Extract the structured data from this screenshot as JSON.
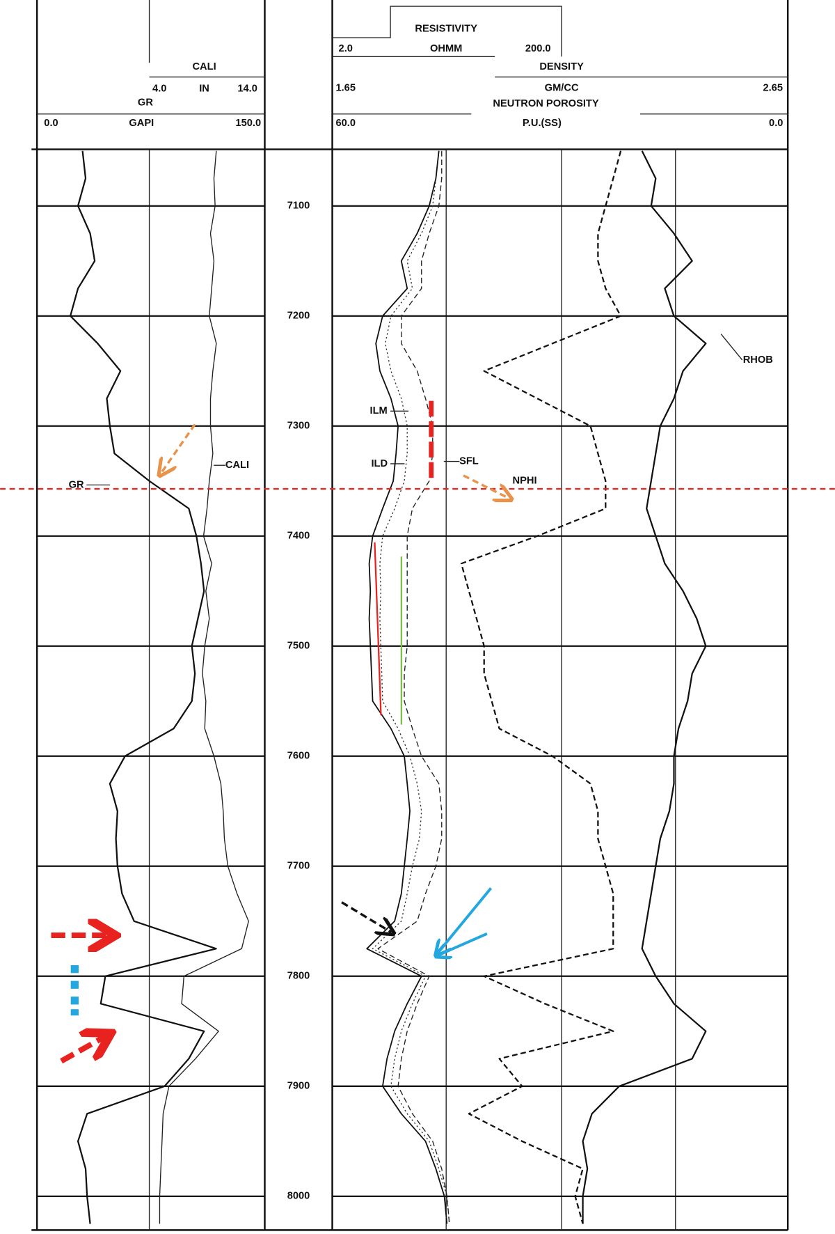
{
  "chart_data": {
    "type": "well-log",
    "depth": [
      7050,
      7075,
      7100,
      7125,
      7150,
      7175,
      7200,
      7225,
      7250,
      7275,
      7300,
      7325,
      7350,
      7375,
      7400,
      7425,
      7450,
      7475,
      7500,
      7525,
      7550,
      7575,
      7600,
      7625,
      7650,
      7675,
      7700,
      7725,
      7750,
      7775,
      7800,
      7825,
      7850,
      7875,
      7900,
      7925,
      7950,
      7975,
      8000,
      8025
    ],
    "ylim": [
      7050,
      8025
    ],
    "yticks": [
      7100,
      7200,
      7300,
      7400,
      7500,
      7600,
      7700,
      7800,
      7900,
      8000
    ],
    "grid": true,
    "scales": [
      {
        "title": "GR",
        "unit": "GAPI",
        "xlim": [
          0,
          150
        ],
        "xticks": [
          {
            "value": 0,
            "label": "0.0"
          },
          {
            "value": 150,
            "label": "150.0"
          }
        ],
        "series": [
          {
            "name": "GR",
            "color": "#111111",
            "style": "solid",
            "width": 2,
            "values": [
              30,
              32,
              27,
              35,
              38,
              27,
              22,
              40,
              55,
              46,
              48,
              51,
              74,
              100,
              105,
              108,
              110,
              106,
              102,
              104,
              102,
              90,
              58,
              48,
              53,
              52,
              53,
              56,
              64,
              118,
              45,
              42,
              110,
              100,
              84,
              33,
              27,
              32,
              33,
              35
            ]
          }
        ]
      },
      {
        "title": "CALI",
        "unit": "IN",
        "xlim": [
          4,
          14
        ],
        "xticks": [
          {
            "value": 4,
            "label": "4.0"
          },
          {
            "value": 14,
            "label": "14.0"
          }
        ],
        "series": [
          {
            "name": "CALI",
            "color": "#222222",
            "style": "solid",
            "width": 1.2,
            "values": [
              9.8,
              9.6,
              9.7,
              9.3,
              9.6,
              9.4,
              9.2,
              9.8,
              9.5,
              9.3,
              9.3,
              9.5,
              9.2,
              9.0,
              8.7,
              9.4,
              8.9,
              9.2,
              8.8,
              8.6,
              8.9,
              8.8,
              9.6,
              10.2,
              10.4,
              10.5,
              10.8,
              11.6,
              12.6,
              12.0,
              7.0,
              6.8,
              10.0,
              8.0,
              5.7,
              5.2,
              5.1,
              5.0,
              4.9,
              4.9
            ]
          }
        ]
      },
      {
        "title": "RESISTIVITY",
        "unit": "OHMM",
        "log_scale": true,
        "xlim": [
          2,
          200
        ],
        "xticks": [
          {
            "value": 2,
            "label": "2.0"
          },
          {
            "value": 200,
            "label": "200.0"
          }
        ],
        "series": [
          {
            "name": "ILM",
            "color": "#333333",
            "style": "dotted",
            "width": 1.2,
            "values": [
              17,
              16,
              15,
              12,
              9,
              10,
              6.5,
              5.8,
              6.5,
              8,
              9,
              9,
              8.5,
              7,
              5.5,
              5.2,
              5.3,
              5.2,
              5.3,
              5.4,
              5.5,
              7.5,
              9.5,
              11,
              12,
              11.5,
              10,
              9,
              8,
              4.5,
              13,
              10,
              8,
              7,
              6.5,
              9,
              14,
              17,
              20,
              21
            ]
          },
          {
            "name": "ILD",
            "color": "#111111",
            "style": "solid",
            "width": 1.6,
            "values": [
              17,
              16,
              14,
              11,
              8,
              9,
              5.5,
              4.8,
              5.2,
              6.5,
              7.5,
              7.2,
              6.8,
              5.5,
              4.5,
              4.2,
              4.3,
              4.2,
              4.3,
              4.4,
              4.5,
              6.5,
              8.5,
              9,
              9.5,
              9,
              8.5,
              8,
              7,
              4.0,
              12,
              9,
              7,
              6,
              5.5,
              8,
              13,
              16,
              19,
              20
            ]
          },
          {
            "name": "SFL",
            "color": "#222222",
            "style": "dashed",
            "width": 1.2,
            "values": [
              18,
              18,
              17,
              14,
              12,
              12,
              8,
              8,
              11,
              13,
              15,
              15,
              14,
              10,
              9,
              9,
              9,
              9,
              9,
              8.5,
              8.5,
              10,
              12,
              17,
              18,
              18,
              16,
              13,
              11,
              5,
              14,
              11,
              9,
              8,
              7.5,
              10,
              15,
              18,
              20,
              21
            ]
          }
        ]
      },
      {
        "title": "DENSITY",
        "unit": "GM/CC",
        "xlim": [
          1.65,
          2.65
        ],
        "xticks": [
          {
            "value": 1.65,
            "label": "1.65"
          },
          {
            "value": 2.65,
            "label": "2.65"
          }
        ],
        "series": [
          {
            "name": "RHOB",
            "color": "#111111",
            "style": "solid",
            "width": 2,
            "values": [
              2.33,
              2.36,
              2.35,
              2.4,
              2.44,
              2.38,
              2.4,
              2.47,
              2.42,
              2.4,
              2.37,
              2.36,
              2.35,
              2.34,
              2.36,
              2.38,
              2.42,
              2.45,
              2.47,
              2.44,
              2.43,
              2.41,
              2.4,
              2.4,
              2.39,
              2.37,
              2.36,
              2.35,
              2.34,
              2.33,
              2.36,
              2.4,
              2.47,
              2.44,
              2.28,
              2.22,
              2.2,
              2.21,
              2.2,
              2.2
            ]
          }
        ]
      },
      {
        "title": "NEUTRON POROSITY",
        "unit": "P.U.(SS)",
        "xlim": [
          60,
          0
        ],
        "xticks": [
          {
            "value": 60,
            "label": "60.0"
          },
          {
            "value": 0,
            "label": "0.0"
          }
        ],
        "series": [
          {
            "name": "NPHI",
            "color": "#111111",
            "style": "dashed",
            "width": 2,
            "values": [
              22,
              23,
              24,
              25,
              25,
              24,
              22,
              31,
              40,
              33,
              26,
              25,
              24,
              24,
              33,
              43,
              42,
              41,
              40,
              40,
              39,
              38,
              31,
              26,
              25,
              25,
              24,
              23,
              23,
              23,
              40,
              32,
              23,
              38,
              35,
              42,
              35,
              27,
              28,
              27
            ]
          }
        ]
      }
    ]
  }
}
